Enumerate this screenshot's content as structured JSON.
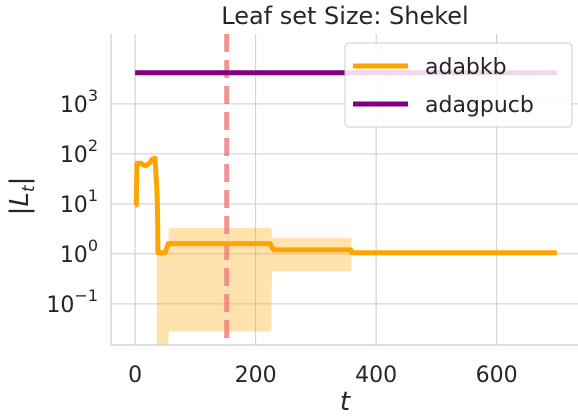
{
  "chart_data": {
    "type": "line",
    "title": "Leaf set Size: Shekel",
    "xlabel": "t",
    "ylabel": "|L_t|",
    "yscale": "log",
    "xlim": [
      -40,
      735
    ],
    "ylim": [
      0.015,
      25000
    ],
    "xticks": [
      0,
      200,
      400,
      600
    ],
    "xtick_labels": [
      "0",
      "200",
      "400",
      "600"
    ],
    "yticks": [
      0.1,
      1,
      10,
      100,
      1000
    ],
    "ytick_labels": [
      {
        "base": "10",
        "exp": "−1"
      },
      {
        "base": "10",
        "exp": "0"
      },
      {
        "base": "10",
        "exp": "1"
      },
      {
        "base": "10",
        "exp": "2"
      },
      {
        "base": "10",
        "exp": "3"
      }
    ],
    "grid": true,
    "legend_position": "top-right",
    "vline": {
      "x": 152,
      "color": "#f08080",
      "style": "dashed"
    },
    "series": [
      {
        "name": "adabkb",
        "color": "#ffa500",
        "x": [
          0,
          2,
          3,
          6,
          10,
          14,
          18,
          24,
          28,
          30,
          33,
          36,
          37,
          38,
          40,
          50,
          55,
          60,
          100,
          150,
          200,
          220,
          224,
          226,
          230,
          300,
          358,
          360,
          362,
          400,
          500,
          600,
          700
        ],
        "y": [
          9.5,
          9.5,
          65,
          65,
          65,
          60,
          58,
          65,
          78,
          76,
          82,
          20,
          10,
          1.05,
          1.05,
          1.05,
          1.6,
          1.6,
          1.6,
          1.6,
          1.6,
          1.6,
          1.6,
          1.4,
          1.2,
          1.2,
          1.2,
          1.05,
          1.05,
          1.05,
          1.05,
          1.05,
          1.05
        ],
        "band": {
          "x": [
            36,
            37,
            38,
            55,
            56,
            224,
            226,
            227,
            358,
            359
          ],
          "upper": [
            1.05,
            1.05,
            1.05,
            1.05,
            3.3,
            3.3,
            3.3,
            2.1,
            2.1,
            2.1
          ],
          "lower": [
            0.015,
            0.015,
            0.015,
            0.015,
            0.028,
            0.028,
            0.028,
            0.45,
            0.45,
            0.45
          ]
        }
      },
      {
        "name": "adagpucb",
        "color": "#800080",
        "x": [
          0,
          700
        ],
        "y": [
          4200,
          4200
        ]
      }
    ]
  }
}
